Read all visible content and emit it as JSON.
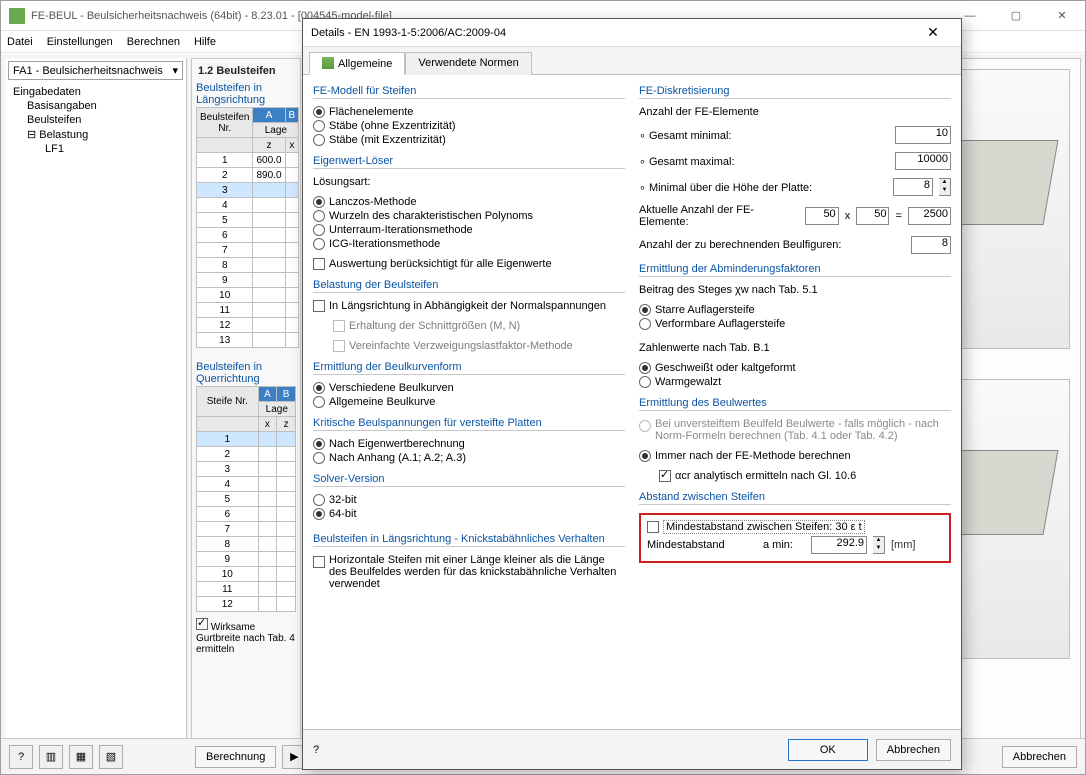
{
  "app": {
    "title": "FE-BEUL - Beulsicherheitsnachweis (64bit) - 8.23.01 - [004545-model-file]",
    "icon_color": "#6aa84f",
    "close_glyph": "✕",
    "min_glyph": "—",
    "max_glyph": "▢"
  },
  "menu": {
    "items": [
      "Datei",
      "Einstellungen",
      "Berechnen",
      "Hilfe"
    ]
  },
  "nav": {
    "combo_label": "FA1 - Beulsicherheitsnachweis",
    "items": [
      {
        "label": "Eingabedaten",
        "lvl": 0,
        "has_children": true
      },
      {
        "label": "Basisangaben",
        "lvl": 1
      },
      {
        "label": "Beulsteifen",
        "lvl": 1
      },
      {
        "label": "Belastung",
        "lvl": 1,
        "has_children": true
      },
      {
        "label": "LF1",
        "lvl": 2
      }
    ]
  },
  "mid": {
    "header": "1.2 Beulsteifen",
    "sec1_label": "Beulsteifen in Längsrichtung",
    "colA": "A",
    "colB": "B",
    "hdr_nr": "Beulsteifen Nr.",
    "hdr_lage": "Lage",
    "sub_z": "z",
    "sub_x": "x",
    "longs": [
      {
        "nr": "1",
        "z": "600.0"
      },
      {
        "nr": "2",
        "z": "890.0"
      },
      {
        "nr": "3",
        "z": ""
      },
      {
        "nr": "4",
        "z": ""
      },
      {
        "nr": "5",
        "z": ""
      },
      {
        "nr": "6",
        "z": ""
      },
      {
        "nr": "7",
        "z": ""
      },
      {
        "nr": "8",
        "z": ""
      },
      {
        "nr": "9",
        "z": ""
      },
      {
        "nr": "10",
        "z": ""
      },
      {
        "nr": "11",
        "z": ""
      },
      {
        "nr": "12",
        "z": ""
      },
      {
        "nr": "13",
        "z": ""
      }
    ],
    "sec2_label": "Beulsteifen in Querrichtung",
    "hdr_steife": "Steife Nr.",
    "quers": [
      {
        "nr": "1"
      },
      {
        "nr": "2"
      },
      {
        "nr": "3"
      },
      {
        "nr": "4"
      },
      {
        "nr": "5"
      },
      {
        "nr": "6"
      },
      {
        "nr": "7"
      },
      {
        "nr": "8"
      },
      {
        "nr": "9"
      },
      {
        "nr": "10"
      },
      {
        "nr": "11"
      },
      {
        "nr": "12"
      }
    ],
    "check_label": "Wirksame Gurtbreite nach Tab. 4 ermitteln"
  },
  "bottom": {
    "berechnung": "Berechnung",
    "abbrechen": "Abbrechen"
  },
  "dialog": {
    "title": "Details - EN 1993-1-5:2006/AC:2009-04",
    "tabs": {
      "active": "Allgemeine",
      "other": "Verwendete Normen"
    },
    "left": {
      "g1": {
        "title": "FE-Modell für Steifen",
        "opts": [
          "Flächenelemente",
          "Stäbe (ohne Exzentrizität)",
          "Stäbe (mit Exzentrizität)"
        ],
        "selected": 0
      },
      "g2": {
        "title": "Eigenwert-Löser",
        "sub": "Lösungsart:",
        "opts": [
          "Lanczos-Methode",
          "Wurzeln des charakteristischen Polynoms",
          "Unterraum-Iterationsmethode",
          "ICG-Iterationsmethode"
        ],
        "selected": 0,
        "check": "Auswertung berücksichtigt für alle Eigenwerte"
      },
      "g3": {
        "title": "Belastung der Beulsteifen",
        "check": "In Längsrichtung in Abhängigkeit der Normalspannungen",
        "sub1": "Erhaltung der Schnittgrößen (M, N)",
        "sub2": "Vereinfachte Verzweigungslastfaktor-Methode"
      },
      "g4": {
        "title": "Ermittlung der Beulkurvenform",
        "opts": [
          "Verschiedene Beulkurven",
          "Allgemeine Beulkurve"
        ],
        "selected": 0
      },
      "g5": {
        "title": "Kritische Beulspannungen für versteifte Platten",
        "opts": [
          "Nach Eigenwertberechnung",
          "Nach Anhang (A.1; A.2; A.3)"
        ],
        "selected": 0
      },
      "g6": {
        "title": "Solver-Version",
        "opts": [
          "32-bit",
          "64-bit"
        ],
        "selected": 1
      },
      "g7": {
        "title": "Beulsteifen in Längsrichtung - Knickstabähnliches Verhalten",
        "check": "Horizontale Steifen mit einer Länge kleiner als die Länge des Beulfeldes werden für das knickstabähnliche Verhalten verwendet"
      }
    },
    "right": {
      "g1": {
        "title": "FE-Diskretisierung",
        "row1": "Anzahl der FE-Elemente",
        "row2": "Gesamt minimal:",
        "row2_val": "10",
        "row3": "Gesamt maximal:",
        "row3_val": "10000",
        "row4": "Minimal über die Höhe der Platte:",
        "row4_val": "8",
        "row5": "Aktuelle Anzahl der FE-Elemente:",
        "row5_a": "50",
        "row5_b": "50",
        "row5_eq": "=",
        "row5_res": "2500",
        "row5_x": "x",
        "row6": "Anzahl der zu berechnenden Beulfiguren:",
        "row6_val": "8"
      },
      "g2": {
        "title": "Ermittlung der Abminderungsfaktoren",
        "sub": "Beitrag des Steges χw nach Tab. 5.1",
        "opts": [
          "Starre Auflagersteife",
          "Verformbare Auflagersteife"
        ],
        "selected": 0,
        "sub2": "Zahlenwerte nach Tab. B.1",
        "opts2": [
          "Geschweißt oder kaltgeformt",
          "Warmgewalzt"
        ],
        "selected2": 0
      },
      "g3": {
        "title": "Ermittlung des Beulwertes",
        "grey": "Bei unversteiftem Beulfeld Beulwerte - falls möglich - nach Norm-Formeln berechnen (Tab. 4.1 oder Tab. 4.2)",
        "opt": "Immer nach der FE-Methode berechnen",
        "check": "αcr analytisch ermitteln nach Gl. 10.6"
      },
      "g4": {
        "title": "Abstand zwischen Steifen",
        "check": "Mindestabstand zwischen Steifen: 30 ε t",
        "row_label": "Mindestabstand",
        "row_sym": "a min:",
        "row_val": "292.9",
        "row_unit": "[mm]"
      }
    },
    "footer": {
      "ok": "OK",
      "cancel": "Abbrechen"
    }
  },
  "colors": {
    "link_blue": "#0b54a3",
    "highlight_red": "#cc1f1f",
    "header_blue": "#3b7fc4"
  }
}
